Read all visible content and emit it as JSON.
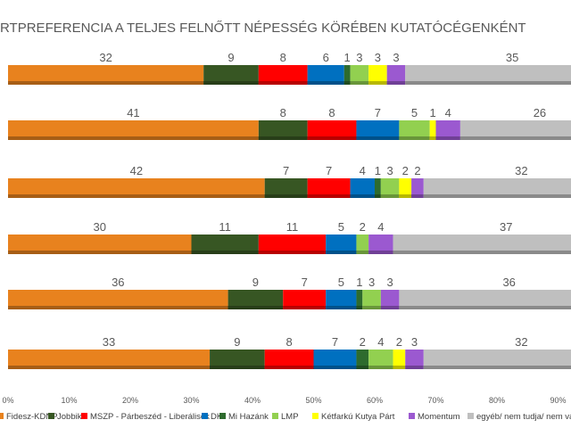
{
  "chart_data": {
    "type": "bar",
    "stacked": true,
    "orientation": "horizontal",
    "title": "RTPREFERENCIA A TELJES FELNŐTT NÉPESSÉG KÖRÉBEN KUTATÓCÉGENKÉNT",
    "xlim": [
      0,
      100
    ],
    "x_ticks": [
      "0%",
      "10%",
      "20%",
      "30%",
      "40%",
      "50%",
      "60%",
      "70%",
      "80%",
      "90%"
    ],
    "legend_position": "bottom",
    "series": [
      {
        "name": "Fidesz-KDNP",
        "color": "#E8821E",
        "values": [
          32,
          41,
          42,
          30,
          36,
          33
        ]
      },
      {
        "name": "Jobbik",
        "color": "#375623",
        "values": [
          9,
          8,
          7,
          11,
          9,
          9
        ]
      },
      {
        "name": "MSZP - Párbeszéd - Liberálisok",
        "color": "#FF0000",
        "values": [
          8,
          8,
          7,
          11,
          7,
          8
        ]
      },
      {
        "name": "DK",
        "color": "#0070C0",
        "values": [
          6,
          7,
          4,
          5,
          5,
          7
        ]
      },
      {
        "name": "Mi Hazánk",
        "color": "#2E6B2E",
        "values": [
          1,
          0,
          1,
          0,
          1,
          2
        ]
      },
      {
        "name": "LMP",
        "color": "#92D050",
        "values": [
          3,
          5,
          3,
          2,
          3,
          4
        ]
      },
      {
        "name": "Kétfarkú Kutya Párt",
        "color": "#FFFF00",
        "values": [
          3,
          1,
          2,
          0,
          0,
          2
        ]
      },
      {
        "name": "Momentum",
        "color": "#9B59D0",
        "values": [
          3,
          4,
          2,
          4,
          3,
          3
        ]
      },
      {
        "name": "egyéb/ nem tudja/ nem válaszol/nem",
        "color": "#BFBFBF",
        "values": [
          35,
          26,
          32,
          37,
          36,
          32
        ]
      }
    ]
  }
}
